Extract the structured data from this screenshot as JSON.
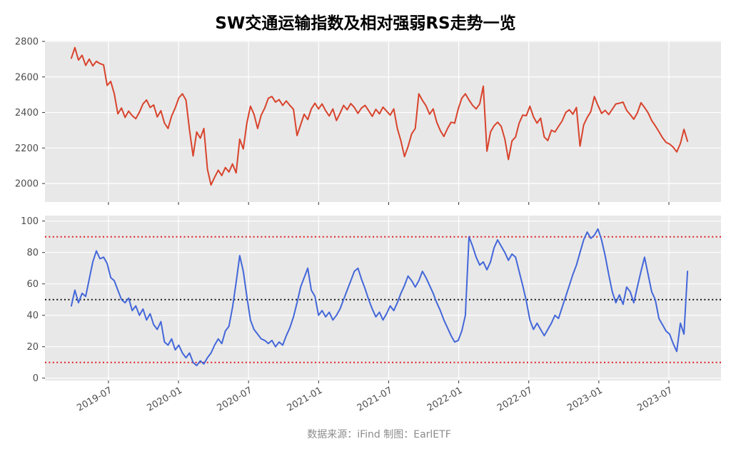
{
  "figure": {
    "title": "SW交通运输指数及相对强弱RS走势一览",
    "caption": "数据来源：iFind 制图：EarlETF"
  },
  "colors": {
    "panel_bg": "#E8E8E8",
    "grid": "#FFFFFF",
    "index_line": "#D8432C",
    "rs_line": "#4367D9",
    "ref_red": "#E02020",
    "ref_black": "#151515",
    "tick_label": "#4D4D4D",
    "title": "#000000",
    "caption": "#8C8C8C"
  },
  "chart_data": {
    "type": "line",
    "x_axis": {
      "lim": [
        2019.047,
        2023.872
      ],
      "ticks": [
        2019.5,
        2020.0,
        2020.5,
        2021.0,
        2021.5,
        2022.0,
        2022.5,
        2023.0,
        2023.5
      ],
      "tick_labels": [
        "2019-07",
        "2020-01",
        "2020-07",
        "2021-01",
        "2021-07",
        "2022-01",
        "2022-07",
        "2023-01",
        "2023-07"
      ],
      "label_rotation_deg": 30
    },
    "panels": [
      {
        "name": "sw-transport-index",
        "ylim": [
          1896,
          2804
        ],
        "yticks": [
          2000,
          2200,
          2400,
          2600,
          2800
        ],
        "x_start": 2019.235,
        "x_step": 0.02557,
        "reference_lines": [],
        "values": [
          2705,
          2765,
          2695,
          2722,
          2665,
          2700,
          2662,
          2688,
          2675,
          2668,
          2552,
          2575,
          2505,
          2392,
          2425,
          2372,
          2408,
          2382,
          2365,
          2402,
          2448,
          2470,
          2428,
          2442,
          2375,
          2410,
          2340,
          2310,
          2380,
          2425,
          2482,
          2505,
          2470,
          2300,
          2155,
          2290,
          2255,
          2310,
          2080,
          1992,
          2035,
          2075,
          2045,
          2090,
          2065,
          2110,
          2060,
          2250,
          2195,
          2340,
          2435,
          2390,
          2310,
          2385,
          2425,
          2480,
          2490,
          2458,
          2472,
          2440,
          2465,
          2440,
          2418,
          2270,
          2330,
          2390,
          2360,
          2420,
          2452,
          2420,
          2448,
          2410,
          2380,
          2420,
          2355,
          2395,
          2440,
          2415,
          2450,
          2428,
          2395,
          2425,
          2440,
          2410,
          2378,
          2418,
          2392,
          2430,
          2408,
          2385,
          2420,
          2310,
          2240,
          2152,
          2208,
          2280,
          2310,
          2505,
          2468,
          2438,
          2390,
          2420,
          2345,
          2298,
          2265,
          2310,
          2345,
          2340,
          2420,
          2480,
          2505,
          2470,
          2440,
          2420,
          2448,
          2548,
          2182,
          2290,
          2325,
          2345,
          2322,
          2250,
          2135,
          2240,
          2262,
          2340,
          2385,
          2382,
          2435,
          2375,
          2340,
          2368,
          2262,
          2242,
          2300,
          2290,
          2322,
          2352,
          2400,
          2415,
          2390,
          2428,
          2210,
          2330,
          2372,
          2405,
          2490,
          2440,
          2395,
          2412,
          2388,
          2418,
          2448,
          2452,
          2458,
          2412,
          2388,
          2362,
          2398,
          2455,
          2428,
          2398,
          2355,
          2325,
          2292,
          2258,
          2232,
          2222,
          2205,
          2178,
          2225,
          2305,
          2238
        ]
      },
      {
        "name": "relative-strength-rs",
        "ylim": [
          -1.5,
          103.5
        ],
        "yticks": [
          0,
          20,
          40,
          60,
          80,
          100
        ],
        "x_start": 2019.235,
        "x_step": 0.02557,
        "reference_lines": [
          {
            "y": 90,
            "color": "#E02020",
            "style": "dotted"
          },
          {
            "y": 50,
            "color": "#151515",
            "style": "dotted"
          },
          {
            "y": 10,
            "color": "#E02020",
            "style": "dotted"
          }
        ],
        "values": [
          46,
          56,
          48,
          54,
          52,
          63,
          74,
          81,
          76,
          77,
          73,
          64,
          62,
          56,
          50,
          48,
          51,
          43,
          46,
          40,
          44,
          37,
          41,
          34,
          31,
          36,
          23,
          21,
          25,
          18,
          21,
          16,
          13,
          16,
          10,
          8,
          11,
          9,
          13,
          16,
          21,
          25,
          22,
          30,
          33,
          45,
          61,
          78,
          68,
          52,
          37,
          31,
          28,
          25,
          24,
          22,
          24,
          20,
          23,
          21,
          27,
          32,
          39,
          48,
          58,
          64,
          70,
          56,
          52,
          40,
          43,
          39,
          42,
          37,
          40,
          44,
          50,
          56,
          62,
          68,
          70,
          63,
          57,
          50,
          44,
          39,
          42,
          37,
          41,
          46,
          43,
          48,
          54,
          59,
          65,
          62,
          58,
          62,
          68,
          64,
          59,
          54,
          48,
          43,
          37,
          32,
          27,
          23,
          24,
          30,
          40,
          90,
          84,
          77,
          72,
          74,
          69,
          74,
          83,
          88,
          84,
          80,
          75,
          79,
          77,
          68,
          59,
          49,
          37,
          31,
          35,
          31,
          27,
          31,
          35,
          40,
          38,
          45,
          52,
          59,
          66,
          72,
          80,
          88,
          93,
          89,
          91,
          95,
          88,
          78,
          66,
          55,
          48,
          53,
          47,
          58,
          55,
          48,
          58,
          68,
          77,
          66,
          55,
          50,
          38,
          34,
          30,
          28,
          22,
          17,
          35,
          28,
          68
        ]
      }
    ]
  }
}
